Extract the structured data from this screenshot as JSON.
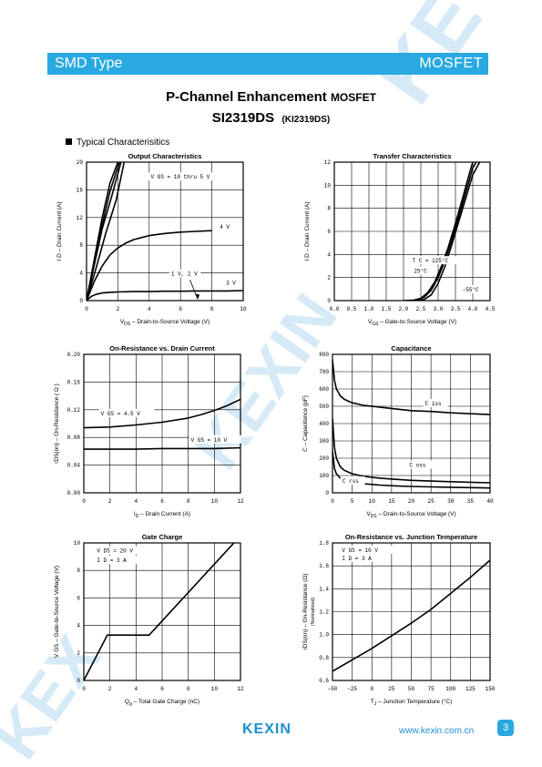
{
  "header": {
    "left": "SMD Type",
    "right": "MOSFET"
  },
  "title": {
    "main": "P-Channel Enhancement",
    "main_suffix": "MOSFET",
    "part": "SI2319DS",
    "part_alt": "(KI2319DS)"
  },
  "section_label": "Typical  Characterisitics",
  "footer": {
    "logo": "KEXIN",
    "url": "www.kexin.com.cn",
    "page": "3"
  },
  "colors": {
    "brand": "#29a9e0",
    "watermark": "#b7dcf2"
  },
  "chart_data": [
    {
      "id": "output",
      "type": "line",
      "title": "Output Characteristics",
      "xlabel_sym": "V",
      "xlabel_sub": "DS",
      "xlabel_rest": "  –  Drain-to-Source Voltage (V)",
      "ylabel": "I  D  –  Drain Current (A)",
      "xlim": [
        0,
        10
      ],
      "ylim": [
        0,
        20
      ],
      "xticks": [
        "0",
        "2",
        "4",
        "6",
        "8",
        "10"
      ],
      "yticks": [
        "0",
        "4",
        "8",
        "12",
        "16",
        "20"
      ],
      "series": [
        {
          "x": [
            0,
            0.5,
            1,
            1.5,
            2
          ],
          "y": [
            0,
            6,
            12,
            17,
            20
          ]
        },
        {
          "x": [
            0,
            0.5,
            1,
            1.5,
            2.1
          ],
          "y": [
            0,
            5.6,
            11,
            15.8,
            20
          ]
        },
        {
          "x": [
            0,
            0.5,
            1,
            1.6,
            2.2
          ],
          "y": [
            0,
            5.2,
            10.4,
            15,
            20
          ]
        },
        {
          "x": [
            0,
            0.6,
            1.2,
            1.9,
            2.4
          ],
          "y": [
            0,
            4.6,
            9.5,
            14.6,
            20
          ]
        },
        {
          "x": [
            0,
            0.5,
            1,
            1.5,
            2,
            2.5,
            3,
            3.5,
            4,
            5,
            6,
            7,
            8
          ],
          "y": [
            0,
            2.8,
            5,
            6.6,
            7.6,
            8.3,
            8.8,
            9.1,
            9.4,
            9.7,
            9.9,
            10.0,
            10.1
          ]
        },
        {
          "x": [
            0,
            0.3,
            0.6,
            1,
            1.5,
            2,
            3,
            4,
            5,
            6,
            7,
            8,
            9,
            10
          ],
          "y": [
            0,
            0.6,
            0.9,
            1.1,
            1.2,
            1.25,
            1.3,
            1.3,
            1.35,
            1.35,
            1.4,
            1.4,
            1.4,
            1.45
          ]
        }
      ],
      "annotations": [
        {
          "text": "V  GS  =  10 thru 5 V",
          "x": 4.1,
          "y": 17.6
        },
        {
          "text": "4 V",
          "x": 8.5,
          "y": 10.4
        },
        {
          "text": "1 V, 2 V",
          "x": 5.4,
          "y": 3.6
        },
        {
          "text": "3 V",
          "x": 8.9,
          "y": 2.3
        }
      ]
    },
    {
      "id": "transfer",
      "type": "line",
      "title": "Transfer Characteristics",
      "xlabel_sym": "V",
      "xlabel_sub": "GS",
      "xlabel_rest": "  –  Gate-to-Source Voltage (V)",
      "ylabel": "I  D  –  Drain Current (A)",
      "xlim": [
        0,
        4.5
      ],
      "ylim": [
        0,
        12
      ],
      "xticks": [
        "0.0",
        "0.5",
        "1.0",
        "1.5",
        "2.0",
        "2.5",
        "3.0",
        "3.5",
        "4.0",
        "4.5"
      ],
      "yticks": [
        "0",
        "2",
        "4",
        "6",
        "8",
        "10",
        "12"
      ],
      "series": [
        {
          "x": [
            2.0,
            2.3,
            2.5,
            2.7,
            2.9,
            3.1,
            3.3,
            3.5,
            3.7,
            3.9,
            4.0
          ],
          "y": [
            0,
            0.05,
            0.2,
            0.7,
            1.6,
            3.0,
            4.7,
            6.7,
            8.8,
            11.0,
            12
          ]
        },
        {
          "x": [
            2.2,
            2.4,
            2.6,
            2.8,
            3.0,
            3.2,
            3.4,
            3.6,
            3.8,
            4.0,
            4.1
          ],
          "y": [
            0,
            0.05,
            0.3,
            0.9,
            2.0,
            3.5,
            5.3,
            7.3,
            9.4,
            11.5,
            12
          ]
        },
        {
          "x": [
            2.4,
            2.6,
            2.8,
            3.0,
            3.2,
            3.4,
            3.6,
            3.8,
            4.0,
            4.2
          ],
          "y": [
            0,
            0.1,
            0.5,
            1.5,
            3.0,
            4.9,
            6.9,
            8.9,
            10.9,
            12
          ]
        }
      ],
      "annotations": [
        {
          "text": "T  C  =  125°C",
          "x": 2.25,
          "y": 3.3
        },
        {
          "text": "25°C",
          "x": 2.3,
          "y": 2.4
        },
        {
          "text": "−55°C",
          "x": 3.7,
          "y": 0.8
        }
      ]
    },
    {
      "id": "onres",
      "type": "line",
      "title": "On-Resistance vs. Drain Current",
      "xlabel_sym": "I",
      "xlabel_sub": "D",
      "xlabel_rest": "  –  Drain Current (A)",
      "ylabel": "rDS(on)  –  On-Resistance (  Ω  )",
      "xlim": [
        0,
        12
      ],
      "ylim": [
        0,
        0.2
      ],
      "xticks": [
        "0",
        "2",
        "4",
        "6",
        "8",
        "10",
        "12"
      ],
      "yticks": [
        "0.00",
        "0.04",
        "0.08",
        "0.12",
        "0.16",
        "0.20"
      ],
      "series": [
        {
          "x": [
            0,
            2,
            4,
            6,
            8,
            9,
            10,
            11,
            12
          ],
          "y": [
            0.094,
            0.095,
            0.098,
            0.102,
            0.108,
            0.113,
            0.119,
            0.126,
            0.135
          ]
        },
        {
          "x": [
            0,
            2,
            4,
            6,
            8,
            10,
            12
          ],
          "y": [
            0.063,
            0.063,
            0.063,
            0.064,
            0.064,
            0.064,
            0.065
          ]
        }
      ],
      "annotations": [
        {
          "text": "V  GS  =  4.5 V",
          "x": 1.3,
          "y": 0.112
        },
        {
          "text": "V  GS  =  10 V",
          "x": 8.2,
          "y": 0.074
        }
      ]
    },
    {
      "id": "capacitance",
      "type": "line",
      "title": "Capacitance",
      "xlabel_sym": "V",
      "xlabel_sub": "DS",
      "xlabel_rest": "  –  Drain-to-Source Voltage (V)",
      "ylabel": "C  –  Capacitance (pF)",
      "xlim": [
        0,
        40
      ],
      "ylim": [
        0,
        800
      ],
      "xticks": [
        "0",
        "5",
        "10",
        "15",
        "20",
        "25",
        "30",
        "35",
        "40"
      ],
      "yticks": [
        "0",
        "100",
        "200",
        "300",
        "400",
        "500",
        "600",
        "700",
        "800"
      ],
      "series": [
        {
          "x": [
            0,
            0.5,
            1,
            2,
            3,
            5,
            8,
            12,
            16,
            20,
            25,
            30,
            35,
            40
          ],
          "y": [
            770,
            650,
            600,
            560,
            540,
            520,
            505,
            495,
            485,
            475,
            470,
            462,
            457,
            452
          ]
        },
        {
          "x": [
            0,
            0.5,
            1,
            2,
            3,
            5,
            8,
            12,
            16,
            20,
            25,
            30,
            35,
            40
          ],
          "y": [
            430,
            260,
            200,
            150,
            130,
            110,
            95,
            85,
            78,
            72,
            68,
            64,
            61,
            58
          ]
        },
        {
          "x": [
            0,
            0.5,
            1,
            2,
            3,
            5,
            8,
            12,
            16,
            20,
            25,
            30,
            35,
            40
          ],
          "y": [
            240,
            140,
            110,
            85,
            75,
            62,
            52,
            45,
            40,
            37,
            34,
            32,
            30,
            28
          ]
        }
      ],
      "annotations": [
        {
          "text": "C  iss",
          "x": 23.5,
          "y": 505
        },
        {
          "text": "C  oss",
          "x": 19.5,
          "y": 150
        },
        {
          "text": "C  rss",
          "x": 2.5,
          "y": 58
        }
      ]
    },
    {
      "id": "gate",
      "type": "line",
      "title": "Gate Charge",
      "xlabel_sym": "Q",
      "xlabel_sub": "g",
      "xlabel_rest": "  –  Total Gate Charge (nC)",
      "ylabel": "V  GS  –  Gate-to-Source Voltage (V)",
      "xlim": [
        0,
        12
      ],
      "ylim": [
        0,
        10
      ],
      "xticks": [
        "0",
        "2",
        "4",
        "6",
        "8",
        "10",
        "12"
      ],
      "yticks": [
        "0",
        "2",
        "4",
        "6",
        "8",
        "10"
      ],
      "series": [
        {
          "x": [
            0,
            1.8,
            5.0,
            11.5
          ],
          "y": [
            0,
            3.3,
            3.3,
            10
          ]
        }
      ],
      "annotations": [
        {
          "text": "V  DS  =  20 V",
          "x": 1.0,
          "y": 9.3
        },
        {
          "text": "I  D  =  3 A",
          "x": 1.0,
          "y": 8.6
        }
      ]
    },
    {
      "id": "ontemp",
      "type": "line",
      "title": "On-Resistance vs. Junction Temperature",
      "xlabel_sym": "T",
      "xlabel_sub": "J",
      "xlabel_rest": "  – Junction Temperature (°C)",
      "ylabel": "rDS(on)  –  On-Resistance (Ω)",
      "ylabel2": "(Normalized)",
      "xlim": [
        -50,
        150
      ],
      "ylim": [
        0.6,
        1.8
      ],
      "xticks": [
        "−50",
        "−25",
        "0",
        "25",
        "50",
        "75",
        "100",
        "125",
        "150"
      ],
      "yticks": [
        "0.6",
        "0.8",
        "1.0",
        "1.2",
        "1.4",
        "1.6",
        "1.8"
      ],
      "series": [
        {
          "x": [
            -50,
            -25,
            0,
            25,
            50,
            75,
            100,
            125,
            150
          ],
          "y": [
            0.68,
            0.78,
            0.88,
            0.99,
            1.1,
            1.22,
            1.36,
            1.5,
            1.65
          ]
        }
      ],
      "annotations": [
        {
          "text": "V  GS  =  10 V",
          "x": -38,
          "y": 1.72
        },
        {
          "text": "I  D  =  3 A",
          "x": -38,
          "y": 1.65
        }
      ]
    }
  ]
}
